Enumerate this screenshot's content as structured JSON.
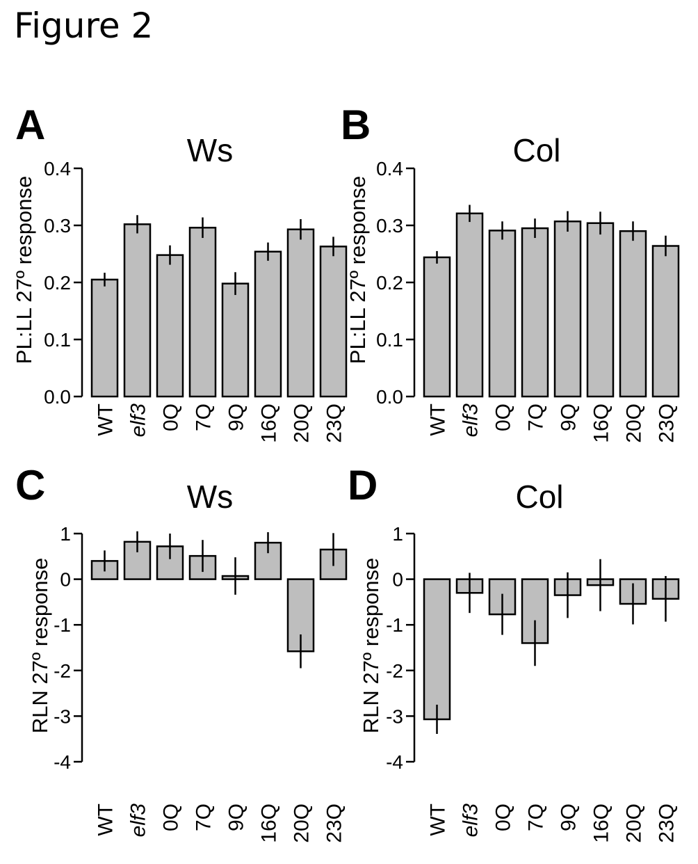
{
  "figure_title": "Figure 2",
  "chart_data": [
    {
      "panel": "A",
      "type": "bar",
      "title": "Ws",
      "ylabel": "PL:LL 27º response",
      "ylim": [
        0,
        0.4
      ],
      "yticks": [
        "0.0",
        "0.1",
        "0.2",
        "0.3",
        "0.4"
      ],
      "yticks_values": [
        0,
        0.1,
        0.2,
        0.3,
        0.4
      ],
      "categories": [
        "WT",
        "elf3",
        "0Q",
        "7Q",
        "9Q",
        "16Q",
        "20Q",
        "23Q"
      ],
      "italic_categories": [
        "elf3"
      ],
      "values": [
        0.205,
        0.302,
        0.248,
        0.296,
        0.198,
        0.254,
        0.293,
        0.263
      ],
      "error": [
        0.012,
        0.016,
        0.017,
        0.018,
        0.02,
        0.016,
        0.018,
        0.017
      ],
      "bar_color": "#bebebe"
    },
    {
      "panel": "B",
      "type": "bar",
      "title": "Col",
      "ylabel": "PL:LL 27º response",
      "ylim": [
        0,
        0.4
      ],
      "yticks": [
        "0.0",
        "0.1",
        "0.2",
        "0.3",
        "0.4"
      ],
      "yticks_values": [
        0,
        0.1,
        0.2,
        0.3,
        0.4
      ],
      "categories": [
        "WT",
        "elf3",
        "0Q",
        "7Q",
        "9Q",
        "16Q",
        "20Q",
        "23Q"
      ],
      "italic_categories": [
        "elf3"
      ],
      "values": [
        0.244,
        0.321,
        0.291,
        0.295,
        0.307,
        0.304,
        0.29,
        0.264
      ],
      "error": [
        0.011,
        0.015,
        0.016,
        0.017,
        0.018,
        0.02,
        0.017,
        0.018
      ],
      "bar_color": "#bebebe"
    },
    {
      "panel": "C",
      "type": "bar",
      "title": "Ws",
      "ylabel": "RLN 27º response",
      "ylim": [
        -4,
        1
      ],
      "yticks": [
        "-4",
        "-3",
        "-2",
        "-1",
        "0",
        "1"
      ],
      "yticks_values": [
        -4,
        -3,
        -2,
        -1,
        0,
        1
      ],
      "categories": [
        "WT",
        "elf3",
        "0Q",
        "7Q",
        "9Q",
        "16Q",
        "20Q",
        "23Q"
      ],
      "italic_categories": [
        "elf3"
      ],
      "values": [
        0.4,
        0.82,
        0.72,
        0.51,
        0.07,
        0.8,
        -1.58,
        0.65
      ],
      "error": [
        0.23,
        0.23,
        0.28,
        0.35,
        0.41,
        0.23,
        0.37,
        0.36
      ],
      "bar_color": "#bebebe"
    },
    {
      "panel": "D",
      "type": "bar",
      "title": "Col",
      "ylabel": "RLN 27º response",
      "ylim": [
        -4,
        1
      ],
      "yticks": [
        "-4",
        "-3",
        "-2",
        "-1",
        "0",
        "1"
      ],
      "yticks_values": [
        -4,
        -3,
        -2,
        -1,
        0,
        1
      ],
      "categories": [
        "WT",
        "elf3",
        "0Q",
        "7Q",
        "9Q",
        "16Q",
        "20Q",
        "23Q"
      ],
      "italic_categories": [
        "elf3"
      ],
      "values": [
        -3.07,
        -0.3,
        -0.77,
        -1.4,
        -0.35,
        -0.13,
        -0.54,
        -0.43
      ],
      "error": [
        0.32,
        0.44,
        0.45,
        0.5,
        0.5,
        0.57,
        0.45,
        0.5
      ],
      "bar_color": "#bebebe"
    }
  ]
}
